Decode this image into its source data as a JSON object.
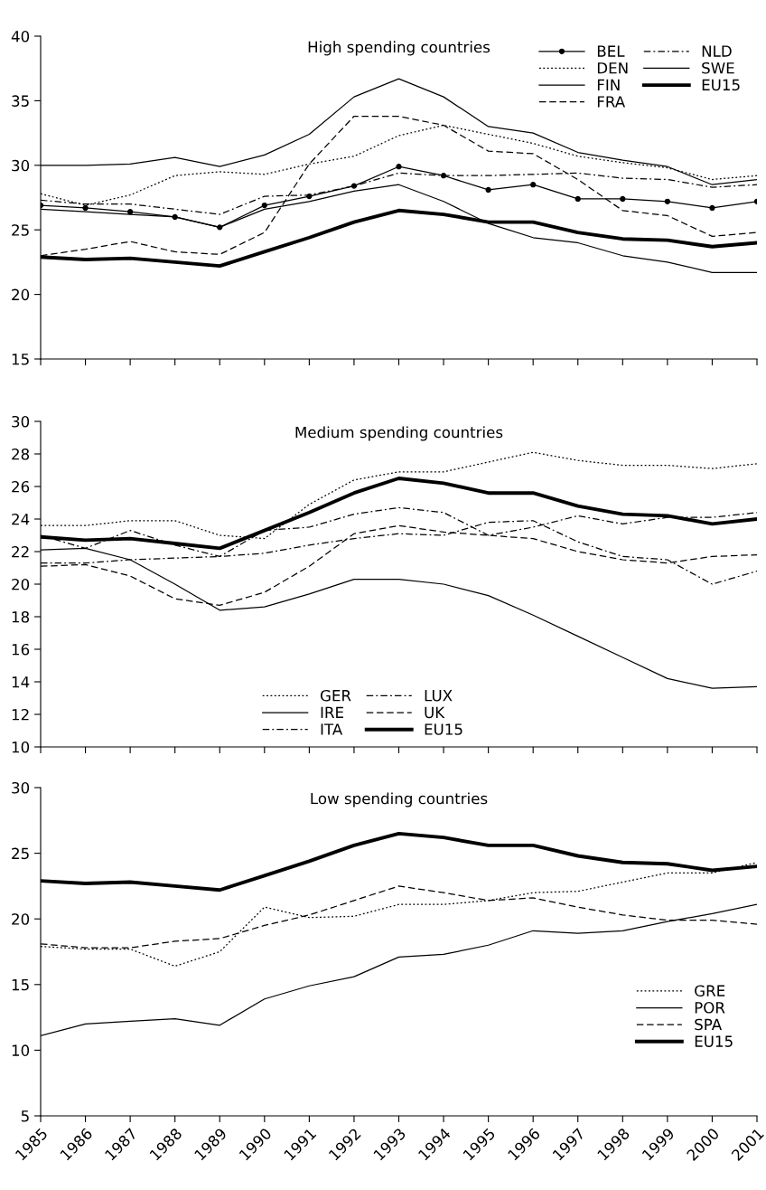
{
  "chart_data": [
    {
      "type": "line",
      "title": "High spending countries",
      "x": [
        1985,
        1986,
        1987,
        1988,
        1989,
        1990,
        1991,
        1992,
        1993,
        1994,
        1995,
        1996,
        1997,
        1998,
        1999,
        2000,
        2001
      ],
      "xlim": [
        1985,
        2001
      ],
      "xticks": [
        1985,
        1986,
        1987,
        1988,
        1989,
        1990,
        1991,
        1992,
        1993,
        1994,
        1995,
        1996,
        1997,
        1998,
        1999,
        2000,
        2001
      ],
      "ylim": [
        15,
        40
      ],
      "yticks": [
        15,
        20,
        25,
        30,
        35,
        40
      ],
      "tick_labels": "y",
      "grid": false,
      "legend": "top right",
      "series": [
        {
          "name": "BEL",
          "color": "#000000",
          "line_style": "solid",
          "marker": "circle",
          "values": [
            26.9,
            26.7,
            26.4,
            26.0,
            25.2,
            26.9,
            27.6,
            28.4,
            29.9,
            29.2,
            28.1,
            28.5,
            27.4,
            27.4,
            27.2,
            26.7,
            27.2
          ]
        },
        {
          "name": "DEN",
          "color": "#000000",
          "line_style": "dotted",
          "values": [
            27.8,
            26.9,
            27.7,
            29.2,
            29.5,
            29.3,
            30.1,
            30.7,
            32.3,
            33.1,
            32.4,
            31.7,
            30.7,
            30.2,
            29.8,
            28.9,
            29.2
          ]
        },
        {
          "name": "FIN",
          "color": "#000000",
          "line_style": "solid",
          "values": [
            26.6,
            26.4,
            26.2,
            26.0,
            25.2,
            26.6,
            27.2,
            28.0,
            28.5,
            27.2,
            25.5,
            24.4,
            24.0,
            23.0,
            22.5,
            21.7,
            21.7
          ]
        },
        {
          "name": "FRA",
          "color": "#000000",
          "line_style": "dashed",
          "values": [
            23.0,
            23.5,
            24.1,
            23.3,
            23.1,
            24.8,
            30.1,
            33.8,
            33.8,
            33.1,
            31.1,
            30.9,
            28.9,
            26.5,
            26.1,
            24.5,
            24.8
          ]
        },
        {
          "name": "NLD",
          "color": "#000000",
          "line_style": "dashdot",
          "values": [
            27.3,
            27.0,
            27.0,
            26.6,
            26.2,
            27.6,
            27.7,
            28.4,
            29.4,
            29.2,
            29.2,
            29.3,
            29.4,
            29.0,
            28.9,
            28.3,
            28.5
          ]
        },
        {
          "name": "SWE",
          "color": "#000000",
          "line_style": "solid",
          "values": [
            30.0,
            30.0,
            30.1,
            30.6,
            29.9,
            30.8,
            32.4,
            35.3,
            36.7,
            35.3,
            33.0,
            32.5,
            31.0,
            30.4,
            29.9,
            28.5,
            28.9
          ]
        },
        {
          "name": "EU15",
          "color": "#000000",
          "line_style": "solid",
          "values": [
            22.9,
            22.7,
            22.8,
            22.5,
            22.2,
            23.3,
            24.4,
            25.6,
            26.5,
            26.2,
            25.6,
            25.6,
            24.8,
            24.3,
            24.2,
            23.7,
            24.0
          ]
        }
      ]
    },
    {
      "type": "line",
      "title": "Medium spending countries",
      "x": [
        1985,
        1986,
        1987,
        1988,
        1989,
        1990,
        1991,
        1992,
        1993,
        1994,
        1995,
        1996,
        1997,
        1998,
        1999,
        2000,
        2001
      ],
      "xlim": [
        1985,
        2001
      ],
      "xticks": [
        1985,
        1986,
        1987,
        1988,
        1989,
        1990,
        1991,
        1992,
        1993,
        1994,
        1995,
        1996,
        1997,
        1998,
        1999,
        2000,
        2001
      ],
      "ylim": [
        10,
        30
      ],
      "yticks": [
        10,
        12,
        14,
        16,
        18,
        20,
        22,
        24,
        26,
        28,
        30
      ],
      "tick_labels": "y",
      "grid": false,
      "legend": "bottom",
      "series": [
        {
          "name": "GER",
          "color": "#000000",
          "line_style": "dotted",
          "values": [
            23.6,
            23.6,
            23.9,
            23.9,
            23.0,
            22.8,
            24.9,
            26.4,
            26.9,
            26.9,
            27.5,
            28.1,
            27.6,
            27.3,
            27.3,
            27.1,
            27.4
          ]
        },
        {
          "name": "IRE",
          "color": "#000000",
          "line_style": "solid",
          "values": [
            22.1,
            22.2,
            21.5,
            20.0,
            18.4,
            18.6,
            19.4,
            20.3,
            20.3,
            20.0,
            19.3,
            18.1,
            16.8,
            15.5,
            14.2,
            13.6,
            13.7
          ]
        },
        {
          "name": "ITA",
          "color": "#000000",
          "line_style": "dashdot",
          "values": [
            21.3,
            21.3,
            21.5,
            21.6,
            21.7,
            21.9,
            22.4,
            22.8,
            23.1,
            23.0,
            23.8,
            23.9,
            22.6,
            21.7,
            21.5,
            20.0,
            20.8
          ]
        },
        {
          "name": "LUX",
          "color": "#000000",
          "line_style": "dashdot",
          "values": [
            23.0,
            22.2,
            23.3,
            22.4,
            21.7,
            23.3,
            23.5,
            24.3,
            24.7,
            24.4,
            23.0,
            23.5,
            24.2,
            23.7,
            24.1,
            24.1,
            24.4
          ]
        },
        {
          "name": "UK",
          "color": "#000000",
          "line_style": "dashed",
          "values": [
            21.1,
            21.2,
            20.5,
            19.1,
            18.7,
            19.5,
            21.1,
            23.1,
            23.6,
            23.2,
            23.0,
            22.8,
            22.0,
            21.5,
            21.3,
            21.7,
            21.8
          ]
        },
        {
          "name": "EU15",
          "color": "#000000",
          "line_style": "solid",
          "values": [
            22.9,
            22.7,
            22.8,
            22.5,
            22.2,
            23.3,
            24.4,
            25.6,
            26.5,
            26.2,
            25.6,
            25.6,
            24.8,
            24.3,
            24.2,
            23.7,
            24.0
          ]
        }
      ]
    },
    {
      "type": "line",
      "title": "Low spending countries",
      "x": [
        1985,
        1986,
        1987,
        1988,
        1989,
        1990,
        1991,
        1992,
        1993,
        1994,
        1995,
        1996,
        1997,
        1998,
        1999,
        2000,
        2001
      ],
      "xlim": [
        1985,
        2001
      ],
      "xticks": [
        1985,
        1986,
        1987,
        1988,
        1989,
        1990,
        1991,
        1992,
        1993,
        1994,
        1995,
        1996,
        1997,
        1998,
        1999,
        2000,
        2001
      ],
      "ylim": [
        5,
        30
      ],
      "yticks": [
        5,
        10,
        15,
        20,
        25,
        30
      ],
      "grid": false,
      "legend": "right",
      "series": [
        {
          "name": "GRE",
          "color": "#000000",
          "line_style": "dotted",
          "values": [
            17.9,
            17.7,
            17.7,
            16.4,
            17.5,
            20.9,
            20.1,
            20.2,
            21.1,
            21.1,
            21.4,
            22.0,
            22.1,
            22.8,
            23.5,
            23.5,
            24.3
          ]
        },
        {
          "name": "POR",
          "color": "#000000",
          "line_style": "solid",
          "values": [
            11.1,
            12.0,
            12.2,
            12.4,
            11.9,
            13.9,
            14.9,
            15.6,
            17.1,
            17.3,
            18.0,
            19.1,
            18.9,
            19.1,
            19.8,
            20.4,
            21.1
          ]
        },
        {
          "name": "SPA",
          "color": "#000000",
          "line_style": "dashed",
          "values": [
            18.1,
            17.8,
            17.8,
            18.3,
            18.5,
            19.5,
            20.3,
            21.4,
            22.5,
            22.0,
            21.4,
            21.6,
            20.9,
            20.3,
            19.9,
            19.9,
            19.6
          ]
        },
        {
          "name": "EU15",
          "color": "#000000",
          "line_style": "solid",
          "values": [
            22.9,
            22.7,
            22.8,
            22.5,
            22.2,
            23.3,
            24.4,
            25.6,
            26.5,
            26.2,
            25.6,
            25.6,
            24.8,
            24.3,
            24.2,
            23.7,
            24.0
          ]
        }
      ]
    }
  ]
}
